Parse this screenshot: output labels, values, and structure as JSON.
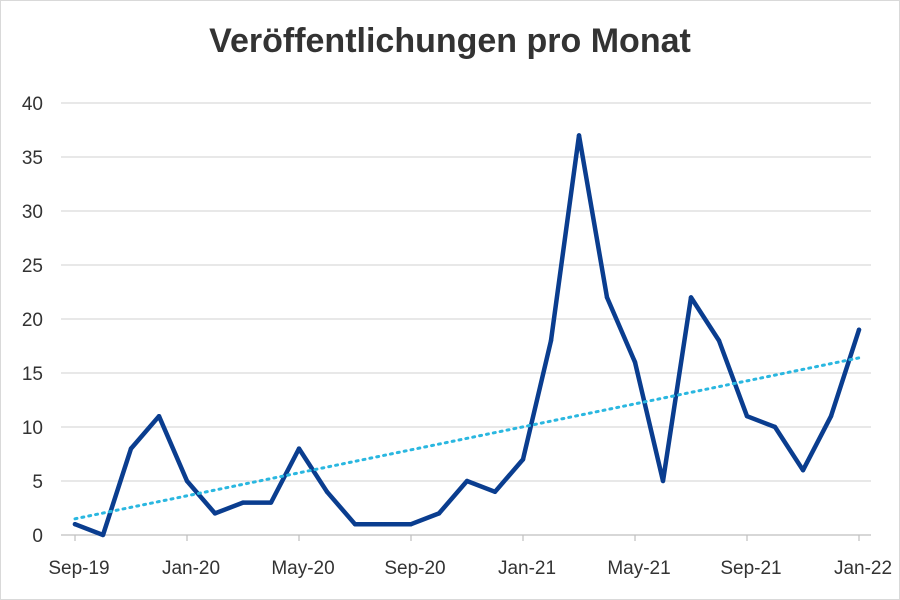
{
  "chart_data": {
    "type": "line",
    "title": "Veröffentlichungen pro Monat",
    "xlabel": "",
    "ylabel": "",
    "ylim": [
      0,
      40
    ],
    "yticks": [
      "0",
      "5",
      "10",
      "15",
      "20",
      "25",
      "30",
      "35",
      "40"
    ],
    "xtick_labels": [
      "Sep-19",
      "Jan-20",
      "May-20",
      "Sep-20",
      "Jan-21",
      "May-21",
      "Sep-21",
      "Jan-22"
    ],
    "x": [
      "Sep-19",
      "Oct-19",
      "Nov-19",
      "Dec-19",
      "Jan-20",
      "Feb-20",
      "Mar-20",
      "Apr-20",
      "May-20",
      "Jun-20",
      "Jul-20",
      "Aug-20",
      "Sep-20",
      "Oct-20",
      "Nov-20",
      "Dec-20",
      "Jan-21",
      "Feb-21",
      "Mar-21",
      "Apr-21",
      "May-21",
      "Jun-21",
      "Jul-21",
      "Aug-21",
      "Sep-21",
      "Oct-21",
      "Nov-21",
      "Dec-21",
      "Jan-22"
    ],
    "series": [
      {
        "values": [
          1,
          0,
          8,
          11,
          5,
          2,
          3,
          3,
          8,
          4,
          1,
          1,
          1,
          2,
          5,
          4,
          7,
          18,
          37,
          22,
          16,
          5,
          22,
          18,
          11,
          10,
          6,
          11,
          19
        ],
        "color": "#0a3d8f",
        "style": "solid"
      },
      {
        "type": "trendline",
        "style": "dotted",
        "color": "#2ab7e0",
        "values_start": 1.5,
        "values_end": 16.4
      }
    ],
    "grid": true,
    "legend": "none"
  }
}
